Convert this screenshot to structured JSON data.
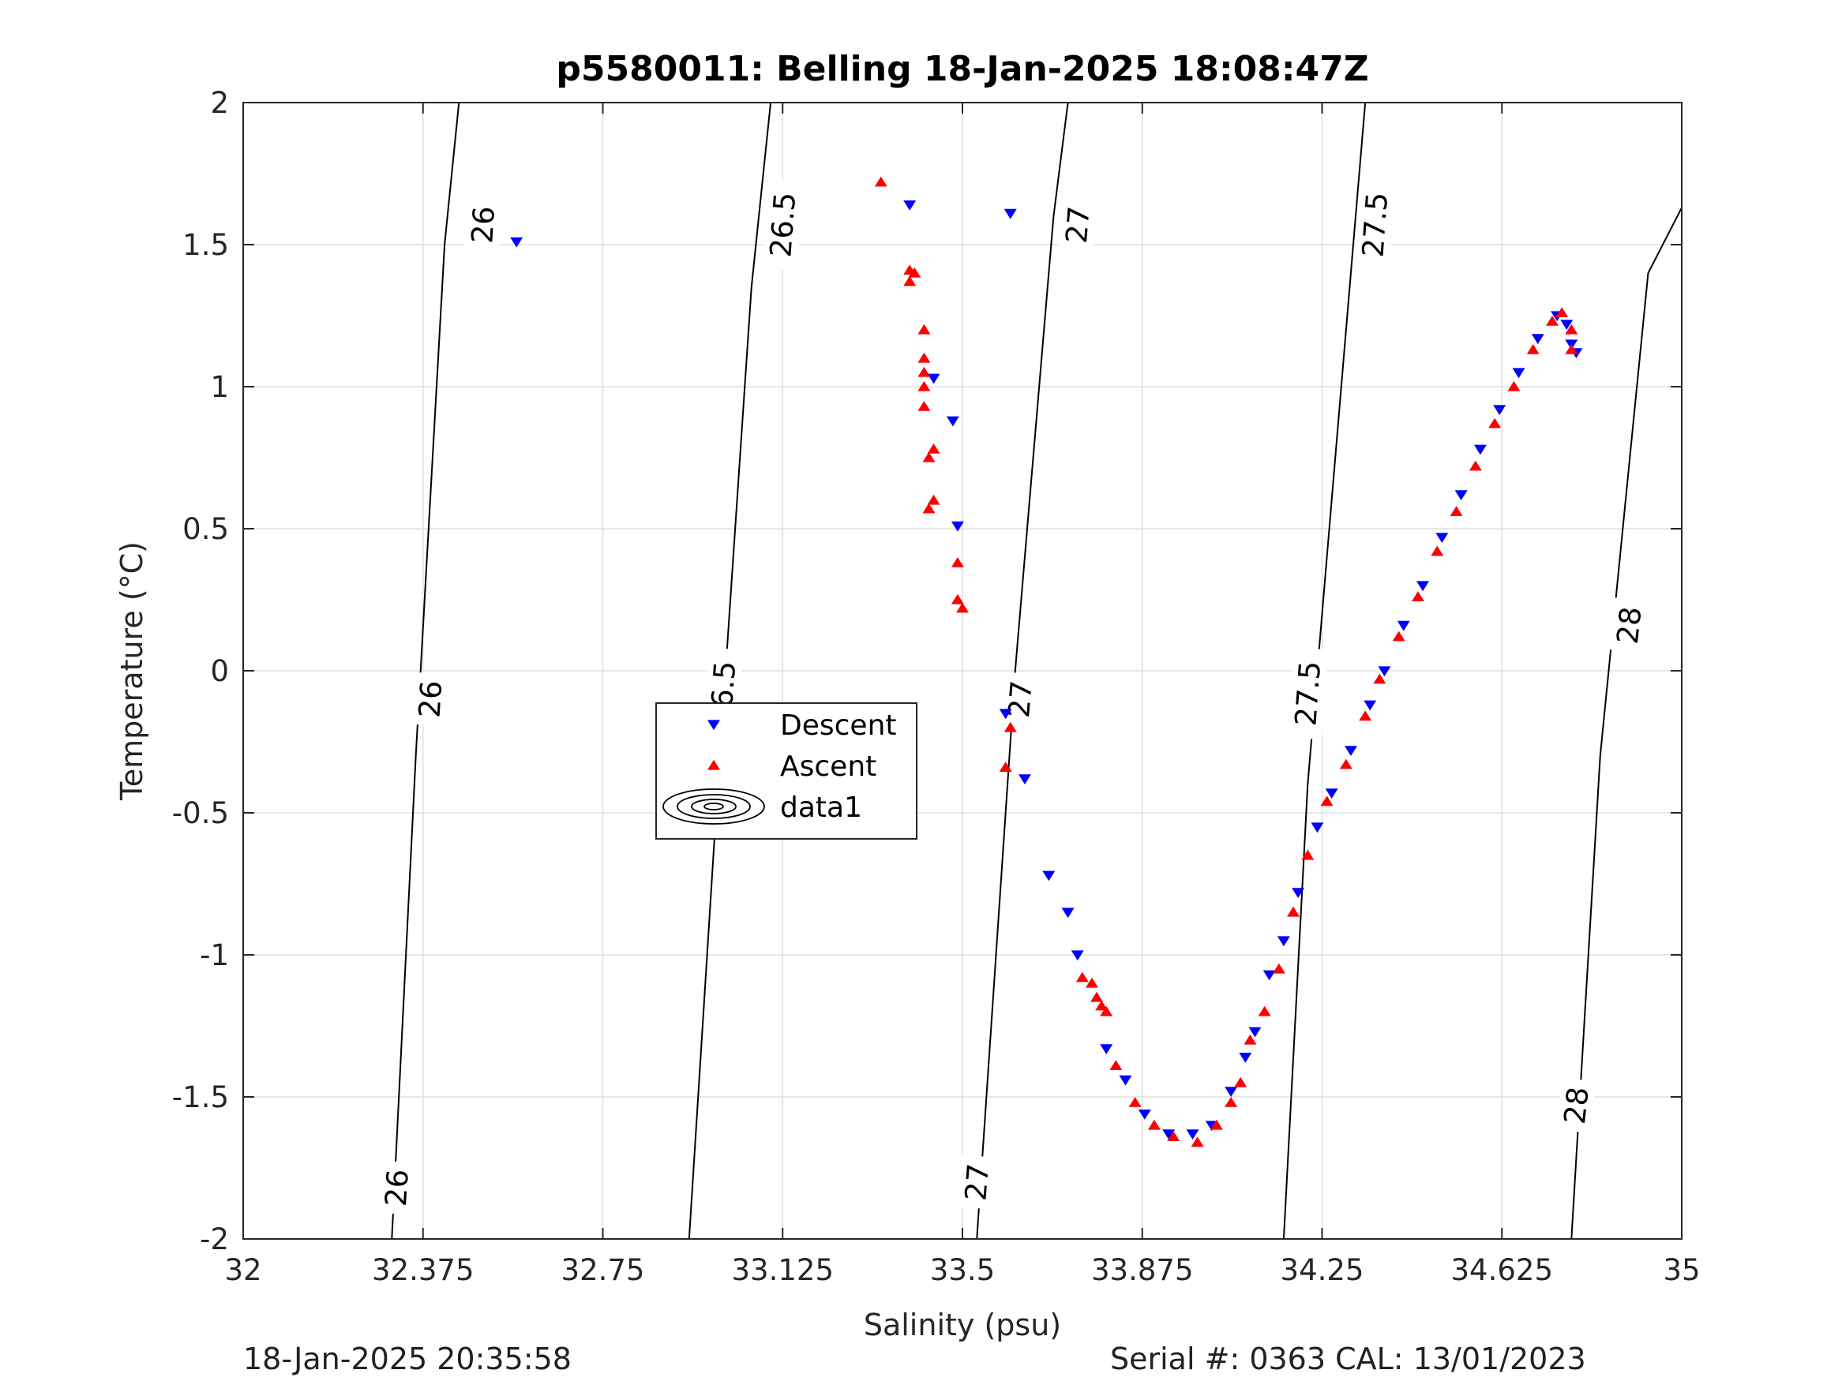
{
  "chart_data": {
    "type": "scatter",
    "title": "p5580011: Belling 18-Jan-2025 18:08:47Z",
    "xlabel": "Salinity (psu)",
    "ylabel": "Temperature (°C)",
    "xlim": [
      32,
      35
    ],
    "ylim": [
      -2,
      2
    ],
    "xticks": [
      32,
      32.375,
      32.75,
      33.125,
      33.5,
      33.875,
      34.25,
      34.625,
      35
    ],
    "xtick_labels": [
      "32",
      "32.375",
      "32.75",
      "33.125",
      "33.5",
      "33.875",
      "34.25",
      "34.625",
      "35"
    ],
    "yticks": [
      -2,
      -1.5,
      -1,
      -0.5,
      0,
      0.5,
      1,
      1.5,
      2
    ],
    "ytick_labels": [
      "-2",
      "-1.5",
      "-1",
      "-0.5",
      "0",
      "0.5",
      "1",
      "1.5",
      "2"
    ],
    "grid": true,
    "legend": {
      "placement": "center-left",
      "entries": [
        {
          "label": "Descent",
          "marker": "triangle-down",
          "color": "#0000ff"
        },
        {
          "label": "Ascent",
          "marker": "triangle-up",
          "color": "#ff0000"
        },
        {
          "label": "data1",
          "marker": "contour",
          "color": "#000000"
        }
      ]
    },
    "series": [
      {
        "name": "Descent",
        "marker": "triangle-down",
        "color": "#0000ff",
        "points": [
          [
            32.57,
            1.51
          ],
          [
            33.39,
            1.64
          ],
          [
            33.6,
            1.61
          ],
          [
            33.44,
            1.03
          ],
          [
            33.48,
            0.88
          ],
          [
            33.49,
            0.51
          ],
          [
            33.59,
            -0.15
          ],
          [
            33.63,
            -0.38
          ],
          [
            33.68,
            -0.72
          ],
          [
            33.72,
            -0.85
          ],
          [
            33.74,
            -1.0
          ],
          [
            33.8,
            -1.33
          ],
          [
            33.84,
            -1.44
          ],
          [
            33.88,
            -1.56
          ],
          [
            33.93,
            -1.63
          ],
          [
            33.98,
            -1.63
          ],
          [
            34.02,
            -1.6
          ],
          [
            34.06,
            -1.48
          ],
          [
            34.09,
            -1.36
          ],
          [
            34.11,
            -1.27
          ],
          [
            34.14,
            -1.07
          ],
          [
            34.17,
            -0.95
          ],
          [
            34.2,
            -0.78
          ],
          [
            34.24,
            -0.55
          ],
          [
            34.27,
            -0.43
          ],
          [
            34.31,
            -0.28
          ],
          [
            34.35,
            -0.12
          ],
          [
            34.38,
            0.0
          ],
          [
            34.42,
            0.16
          ],
          [
            34.46,
            0.3
          ],
          [
            34.5,
            0.47
          ],
          [
            34.54,
            0.62
          ],
          [
            34.58,
            0.78
          ],
          [
            34.62,
            0.92
          ],
          [
            34.66,
            1.05
          ],
          [
            34.7,
            1.17
          ],
          [
            34.74,
            1.25
          ],
          [
            34.76,
            1.22
          ],
          [
            34.77,
            1.15
          ],
          [
            34.78,
            1.12
          ]
        ]
      },
      {
        "name": "Ascent",
        "marker": "triangle-up",
        "color": "#ff0000",
        "points": [
          [
            33.33,
            1.72
          ],
          [
            33.39,
            1.41
          ],
          [
            33.39,
            1.37
          ],
          [
            33.4,
            1.4
          ],
          [
            33.42,
            1.2
          ],
          [
            33.42,
            1.1
          ],
          [
            33.42,
            1.05
          ],
          [
            33.42,
            1.0
          ],
          [
            33.42,
            0.93
          ],
          [
            33.43,
            0.75
          ],
          [
            33.44,
            0.78
          ],
          [
            33.43,
            0.57
          ],
          [
            33.44,
            0.6
          ],
          [
            33.49,
            0.38
          ],
          [
            33.49,
            0.25
          ],
          [
            33.5,
            0.22
          ],
          [
            33.6,
            -0.2
          ],
          [
            33.59,
            -0.34
          ],
          [
            33.75,
            -1.08
          ],
          [
            33.77,
            -1.1
          ],
          [
            33.78,
            -1.15
          ],
          [
            33.79,
            -1.18
          ],
          [
            33.8,
            -1.2
          ],
          [
            33.82,
            -1.39
          ],
          [
            33.86,
            -1.52
          ],
          [
            33.9,
            -1.6
          ],
          [
            33.94,
            -1.64
          ],
          [
            33.99,
            -1.66
          ],
          [
            34.03,
            -1.6
          ],
          [
            34.06,
            -1.52
          ],
          [
            34.08,
            -1.45
          ],
          [
            34.1,
            -1.3
          ],
          [
            34.13,
            -1.2
          ],
          [
            34.16,
            -1.05
          ],
          [
            34.19,
            -0.85
          ],
          [
            34.22,
            -0.65
          ],
          [
            34.26,
            -0.46
          ],
          [
            34.3,
            -0.33
          ],
          [
            34.34,
            -0.16
          ],
          [
            34.37,
            -0.03
          ],
          [
            34.41,
            0.12
          ],
          [
            34.45,
            0.26
          ],
          [
            34.49,
            0.42
          ],
          [
            34.53,
            0.56
          ],
          [
            34.57,
            0.72
          ],
          [
            34.61,
            0.87
          ],
          [
            34.65,
            1.0
          ],
          [
            34.69,
            1.13
          ],
          [
            34.73,
            1.23
          ],
          [
            34.75,
            1.26
          ],
          [
            34.77,
            1.2
          ],
          [
            34.77,
            1.13
          ]
        ]
      }
    ],
    "contours": [
      {
        "level": "26",
        "points": [
          [
            32.31,
            -2.0
          ],
          [
            32.36,
            -0.3
          ],
          [
            32.42,
            1.5
          ],
          [
            32.45,
            2.0
          ]
        ],
        "label_positions": [
          [
            32.32,
            -1.82
          ],
          [
            32.39,
            -0.1
          ],
          [
            32.5,
            1.57
          ]
        ]
      },
      {
        "level": "26.5",
        "points": [
          [
            32.93,
            -2.0
          ],
          [
            32.99,
            -0.4
          ],
          [
            33.06,
            1.35
          ],
          [
            33.1,
            2.0
          ]
        ],
        "label_positions": [
          [
            33.0,
            -0.08
          ],
          [
            33.125,
            1.57
          ]
        ]
      },
      {
        "level": "27",
        "points": [
          [
            33.53,
            -2.0
          ],
          [
            33.61,
            0.0
          ],
          [
            33.69,
            1.6
          ],
          [
            33.72,
            2.0
          ]
        ],
        "label_positions": [
          [
            33.53,
            -1.8
          ],
          [
            33.62,
            -0.1
          ],
          [
            33.74,
            1.57
          ]
        ]
      },
      {
        "level": "27.5",
        "points": [
          [
            34.17,
            -2.0
          ],
          [
            34.22,
            -0.4
          ],
          [
            34.31,
            1.4
          ],
          [
            34.34,
            2.0
          ]
        ],
        "label_positions": [
          [
            34.22,
            -0.08
          ],
          [
            34.36,
            1.57
          ]
        ]
      },
      {
        "level": "28",
        "points": [
          [
            34.77,
            -2.0
          ],
          [
            34.83,
            -0.3
          ],
          [
            34.93,
            1.4
          ],
          [
            35.0,
            1.63
          ]
        ],
        "label_positions": [
          [
            34.78,
            -1.53
          ],
          [
            34.89,
            0.16
          ]
        ]
      }
    ]
  },
  "footer": {
    "left": "18-Jan-2025 20:35:58",
    "right": "Serial #: 0363  CAL: 13/01/2023"
  }
}
